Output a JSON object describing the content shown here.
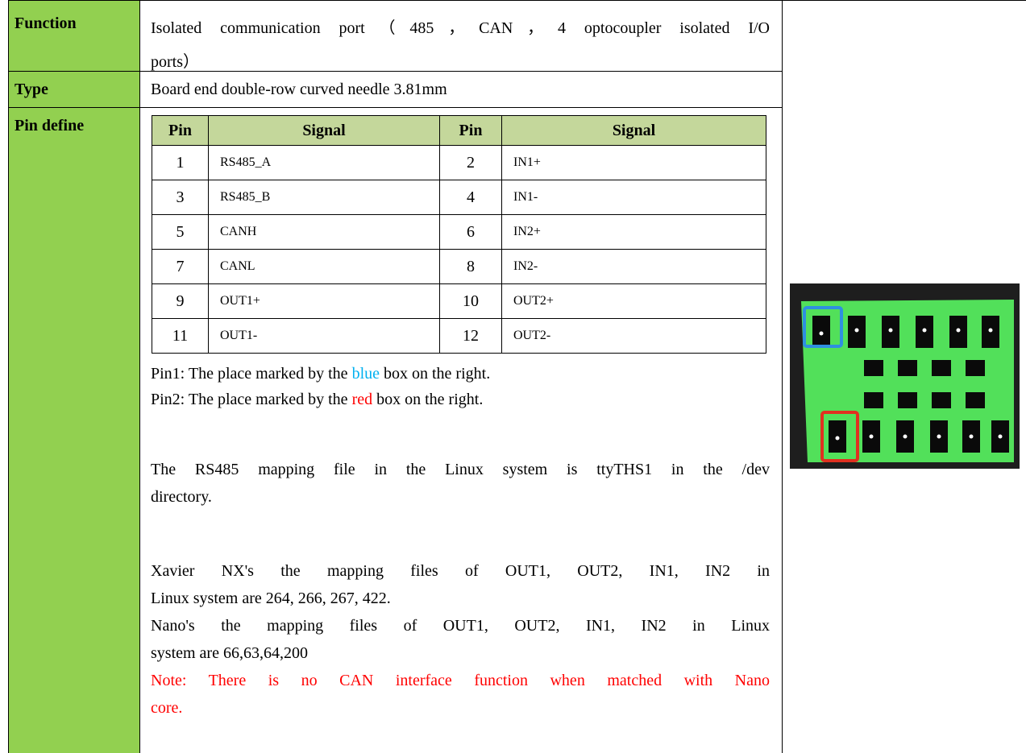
{
  "rows": [
    {
      "label": "Function",
      "value_lines": [
        "Isolated communication port（485，CAN，4 optocoupler isolated I/O",
        "ports）"
      ]
    },
    {
      "label": "Type",
      "value_lines": [
        "Board end double-row curved needle 3.81mm"
      ]
    },
    {
      "label": "Pin define"
    }
  ],
  "pin_table": {
    "header": [
      "Pin",
      "Signal",
      "Pin",
      "Signal"
    ],
    "rows": [
      [
        "1",
        "RS485_A",
        "2",
        "IN1+"
      ],
      [
        "3",
        "RS485_B",
        "4",
        "IN1-"
      ],
      [
        "5",
        "CANH",
        "6",
        "IN2+"
      ],
      [
        "7",
        "CANL",
        "8",
        "IN2-"
      ],
      [
        "9",
        "OUT1+",
        "10",
        "OUT2+"
      ],
      [
        "11",
        "OUT1-",
        "12",
        "OUT2-"
      ]
    ]
  },
  "notes": {
    "pin1": [
      "Pin1: The place marked by the ",
      "blue",
      " box on the right."
    ],
    "pin2": [
      "Pin2: The place marked by the ",
      "red",
      " box on the right."
    ],
    "rs485": [
      "The RS485 mapping file in the Linux system is ttyTHS1 in the /dev",
      "directory."
    ],
    "xavier": [
      "Xavier NX's the mapping files of   OUT1, OUT2, IN1, IN2 in",
      "Linux system are 264, 266, 267, 422."
    ],
    "nano": [
      "Nano's the mapping files of   OUT1, OUT2, IN1, IN2 in Linux",
      "system are 66,63,64,200"
    ],
    "warning": [
      "Note: There is no CAN interface function when matched with Nano",
      "core."
    ]
  }
}
